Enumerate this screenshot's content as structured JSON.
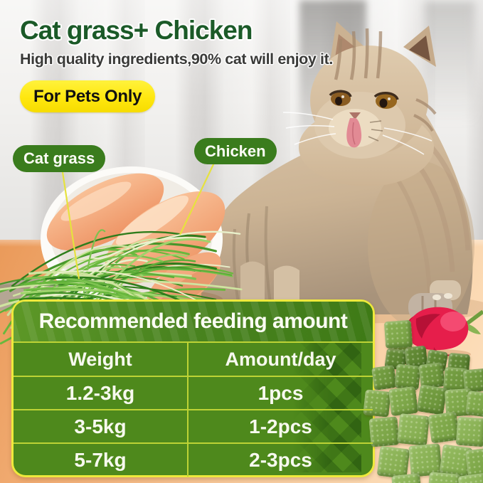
{
  "header": {
    "title": "Cat grass+ Chicken",
    "subtitle": "High quality ingredients,90% cat will enjoy it.",
    "pets_badge": "For Pets Only"
  },
  "callouts": {
    "cat_grass_label": "Cat grass",
    "chicken_label": "Chicken"
  },
  "feeding_table": {
    "title": "Recommended feeding amount",
    "columns": [
      "Weight",
      "Amount/day"
    ],
    "rows": [
      {
        "weight": "1.2-3kg",
        "amount": "1pcs"
      },
      {
        "weight": "3-5kg",
        "amount": "1-2pcs"
      },
      {
        "weight": "5-7kg",
        "amount": "2-3pcs"
      }
    ]
  },
  "scene": {
    "cat": "cream-tabby-cat-licking-nose",
    "bowl": "white-bowl-with-raw-chicken-and-cat-grass",
    "treats": "pile-of-green-freeze-dried-cubes",
    "flower": "red-tulip"
  },
  "colors": {
    "title_green": "#1b5a28",
    "label_pill_green": "#3a7c1d",
    "pets_badge_yellow": "#ffe70f",
    "table_green": "#4e891c",
    "table_border_yellow": "#eee93c",
    "table_divider": "#bdd335",
    "pointer_line_yellow": "#e6e23e"
  }
}
